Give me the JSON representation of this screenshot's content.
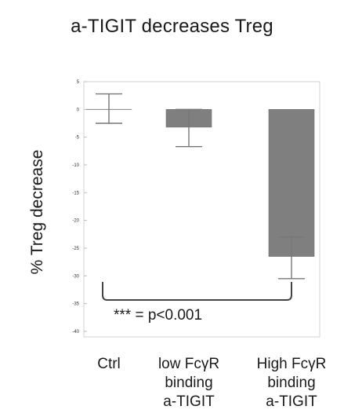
{
  "chart_data": {
    "type": "bar",
    "title": "a-TIGIT decreases Treg",
    "xlabel": "",
    "ylabel": "% Treg decrease",
    "ylim": [
      -41,
      5
    ],
    "yticks": [
      5,
      0,
      -5,
      -10,
      -15,
      -20,
      -25,
      -30,
      -35,
      -40
    ],
    "ytick_labels": [
      "5",
      "0",
      "-5",
      "-10",
      "-15",
      "-20",
      "-25",
      "-30",
      "-35",
      "-40"
    ],
    "categories": [
      [
        "Ctrl"
      ],
      [
        "low FcγR",
        "binding",
        "a-TIGIT"
      ],
      [
        "High FcγR",
        "binding",
        "a-TIGIT"
      ]
    ],
    "values": [
      0,
      -3.2,
      -26.5
    ],
    "error_low": [
      -2.5,
      -6.7,
      -30.5
    ],
    "error_high": [
      2.8,
      0,
      -23
    ],
    "bar_color": "#7f7f7f",
    "grid": false,
    "annotation": {
      "text": "*** = p<0.001",
      "from_category": 0,
      "to_category": 2
    }
  }
}
